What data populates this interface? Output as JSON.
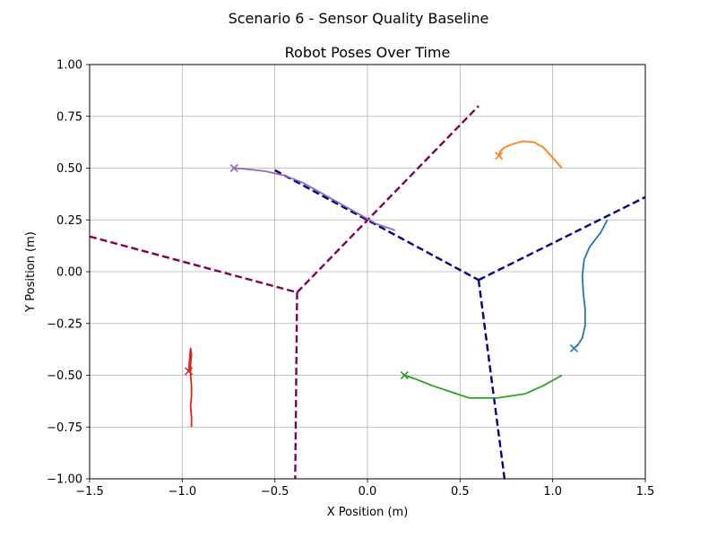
{
  "figure": {
    "suptitle": "Scenario 6 - Sensor Quality Baseline"
  },
  "chart_data": {
    "type": "line",
    "title": "Robot Poses Over Time",
    "xlabel": "X Position (m)",
    "ylabel": "Y Position (m)",
    "xlim": [
      -1.5,
      1.5
    ],
    "ylim": [
      -1.0,
      1.0
    ],
    "xticks": [
      -1.5,
      -1.0,
      -0.5,
      0.0,
      0.5,
      1.0,
      1.5
    ],
    "xtick_labels": [
      "−1.5",
      "−1.0",
      "−0.5",
      "0.0",
      "0.5",
      "1.0",
      "1.5"
    ],
    "yticks": [
      -1.0,
      -0.75,
      -0.5,
      -0.25,
      0.0,
      0.25,
      0.5,
      0.75,
      1.0
    ],
    "ytick_labels": [
      "−1.00",
      "−0.75",
      "−0.50",
      "−0.25",
      "0.00",
      "0.25",
      "0.50",
      "0.75",
      "1.00"
    ],
    "grid": true,
    "series": [
      {
        "color": "#1f77b4",
        "points": [
          [
            1.295,
            0.25
          ],
          [
            1.26,
            0.19
          ],
          [
            1.2,
            0.12
          ],
          [
            1.17,
            0.06
          ],
          [
            1.16,
            -0.02
          ],
          [
            1.165,
            -0.1
          ],
          [
            1.175,
            -0.18
          ],
          [
            1.175,
            -0.26
          ],
          [
            1.16,
            -0.32
          ],
          [
            1.135,
            -0.355
          ],
          [
            1.115,
            -0.37
          ]
        ],
        "end_marker": [
          1.115,
          -0.37
        ]
      },
      {
        "color": "#ff7f0e",
        "points": [
          [
            1.05,
            0.5
          ],
          [
            1.0,
            0.55
          ],
          [
            0.95,
            0.6
          ],
          [
            0.9,
            0.625
          ],
          [
            0.84,
            0.63
          ],
          [
            0.78,
            0.615
          ],
          [
            0.74,
            0.6
          ],
          [
            0.715,
            0.58
          ],
          [
            0.71,
            0.56
          ]
        ],
        "end_marker": [
          0.71,
          0.56
        ]
      },
      {
        "color": "#2ca02c",
        "points": [
          [
            1.05,
            -0.5
          ],
          [
            0.95,
            -0.55
          ],
          [
            0.85,
            -0.59
          ],
          [
            0.7,
            -0.61
          ],
          [
            0.55,
            -0.61
          ],
          [
            0.45,
            -0.58
          ],
          [
            0.35,
            -0.55
          ],
          [
            0.25,
            -0.515
          ],
          [
            0.2,
            -0.5
          ]
        ],
        "end_marker": [
          0.2,
          -0.5
        ]
      },
      {
        "color": "#d62728",
        "points": [
          [
            -0.95,
            -0.75
          ],
          [
            -0.95,
            -0.7
          ],
          [
            -0.955,
            -0.65
          ],
          [
            -0.95,
            -0.6
          ],
          [
            -0.95,
            -0.55
          ],
          [
            -0.955,
            -0.5
          ],
          [
            -0.955,
            -0.45
          ],
          [
            -0.95,
            -0.4
          ],
          [
            -0.955,
            -0.37
          ],
          [
            -0.96,
            -0.42
          ],
          [
            -0.965,
            -0.48
          ]
        ],
        "end_marker": [
          -0.965,
          -0.48
        ]
      },
      {
        "color": "#9467bd",
        "points": [
          [
            0.15,
            0.2
          ],
          [
            0.05,
            0.23
          ],
          [
            -0.05,
            0.28
          ],
          [
            -0.15,
            0.33
          ],
          [
            -0.25,
            0.38
          ],
          [
            -0.35,
            0.43
          ],
          [
            -0.45,
            0.465
          ],
          [
            -0.55,
            0.485
          ],
          [
            -0.65,
            0.495
          ],
          [
            -0.72,
            0.5
          ]
        ],
        "end_marker": [
          -0.72,
          0.5
        ]
      }
    ],
    "dashed_lines": [
      {
        "color": "#000080",
        "points": [
          [
            -0.5,
            0.49
          ],
          [
            0.6,
            -0.04
          ]
        ]
      },
      {
        "color": "#000080",
        "points": [
          [
            0.6,
            -0.04
          ],
          [
            1.5,
            0.36
          ]
        ]
      },
      {
        "color": "#000080",
        "points": [
          [
            0.6,
            -0.04
          ],
          [
            0.74,
            -1.0
          ]
        ]
      },
      {
        "color": "#7f0055",
        "points": [
          [
            -1.5,
            0.17
          ],
          [
            -0.38,
            -0.1
          ]
        ]
      },
      {
        "color": "#7f0055",
        "points": [
          [
            -0.38,
            -0.1
          ],
          [
            0.6,
            0.8
          ]
        ]
      },
      {
        "color": "#7f0055",
        "points": [
          [
            -0.38,
            -0.1
          ],
          [
            -0.39,
            -1.0
          ]
        ]
      }
    ]
  }
}
